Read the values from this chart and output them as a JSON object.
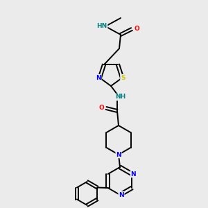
{
  "bg_color": "#ebebeb",
  "bond_color": "#000000",
  "atom_colors": {
    "N": "#0000ff",
    "NH": "#008080",
    "O": "#ff0000",
    "S": "#cccc00",
    "C": "#000000"
  },
  "bond_lw": 1.4,
  "font_size": 7.0
}
